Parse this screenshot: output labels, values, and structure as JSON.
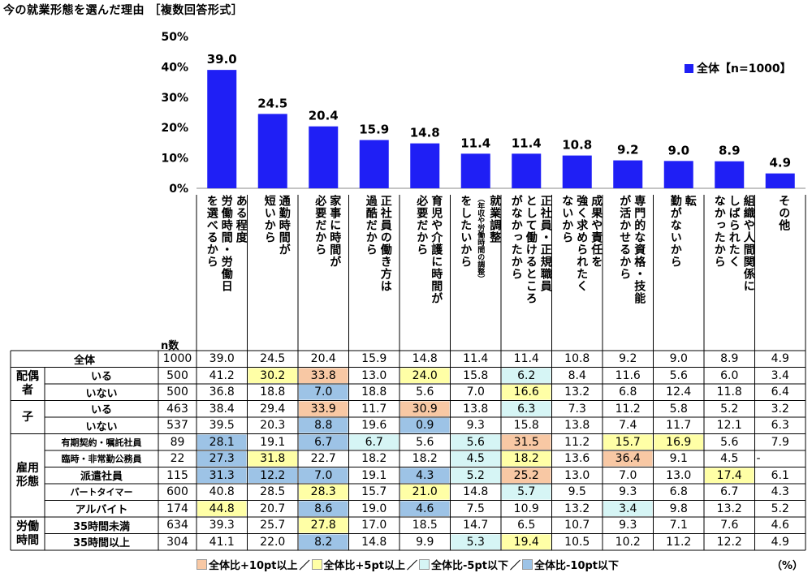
{
  "title": "今の就業形態を選んだ理由 ［複数回答形式］",
  "chart_data": {
    "type": "bar",
    "title": "今の就業形態を選んだ理由 ［複数回答形式］",
    "ylim": [
      0,
      50
    ],
    "yticks": [
      "0%",
      "10%",
      "20%",
      "30%",
      "40%",
      "50%"
    ],
    "series": [
      {
        "name": "全体【n=1000】",
        "color": "#1F1FF5",
        "values": [
          39.0,
          24.5,
          20.4,
          15.9,
          14.8,
          11.4,
          11.4,
          10.8,
          9.2,
          9.0,
          8.9,
          4.9
        ]
      }
    ],
    "value_labels": [
      "39.0",
      "24.5",
      "20.4",
      "15.9",
      "14.8",
      "11.4",
      "11.4",
      "10.8",
      "9.2",
      "9.0",
      "8.9",
      "4.9"
    ],
    "categories": [
      {
        "lines": [
          "ある程度",
          "労働時間・労働日",
          "を選べるから"
        ]
      },
      {
        "lines": [
          "通勤時間が",
          "短いから"
        ]
      },
      {
        "lines": [
          "家事に時間が",
          "必要だから"
        ]
      },
      {
        "lines": [
          "正社員の働き方は",
          "過酷だから"
        ]
      },
      {
        "lines": [
          "育児や介護に時間が",
          "必要だから"
        ]
      },
      {
        "lines": [
          "就業調整",
          "（年収や労働時間の調整）",
          "をしたいから"
        ]
      },
      {
        "lines": [
          "正社員・正規職員",
          "として働けるところ",
          "がなかったから"
        ]
      },
      {
        "lines": [
          "成果や責任を",
          "強く求められたく",
          "ないから"
        ]
      },
      {
        "lines": [
          "専門的な資格・技能",
          "が活かせるから"
        ]
      },
      {
        "lines": [
          "転",
          "勤がないから"
        ]
      },
      {
        "lines": [
          "組織や人間関係に",
          "しばられたく",
          "なかったから"
        ]
      },
      {
        "lines": [
          "その他"
        ]
      }
    ],
    "legend": "top-right"
  },
  "table": {
    "n_header": "n数",
    "rows": [
      {
        "group": "",
        "label": "全体",
        "n": "1000",
        "values": [
          "39.0",
          "24.5",
          "20.4",
          "15.9",
          "14.8",
          "11.4",
          "11.4",
          "10.8",
          "9.2",
          "9.0",
          "8.9",
          "4.9"
        ]
      },
      {
        "group": "配偶者",
        "label": "いる",
        "n": "500",
        "values": [
          "41.2",
          "30.2",
          "33.8",
          "13.0",
          "24.0",
          "15.8",
          "6.2",
          "8.4",
          "11.6",
          "5.6",
          "6.0",
          "3.4"
        ]
      },
      {
        "group": "配偶者",
        "label": "いない",
        "n": "500",
        "values": [
          "36.8",
          "18.8",
          "7.0",
          "18.8",
          "5.6",
          "7.0",
          "16.6",
          "13.2",
          "6.8",
          "12.4",
          "11.8",
          "6.4"
        ]
      },
      {
        "group": "子",
        "label": "いる",
        "n": "463",
        "values": [
          "38.4",
          "29.4",
          "33.9",
          "11.7",
          "30.9",
          "13.8",
          "6.3",
          "7.3",
          "11.2",
          "5.8",
          "5.2",
          "3.2"
        ]
      },
      {
        "group": "子",
        "label": "いない",
        "n": "537",
        "values": [
          "39.5",
          "20.3",
          "8.8",
          "19.6",
          "0.9",
          "9.3",
          "15.8",
          "13.8",
          "7.4",
          "11.7",
          "12.1",
          "6.3"
        ]
      },
      {
        "group": "雇用形態",
        "label": "有期契約・嘱託社員",
        "n": "89",
        "values": [
          "28.1",
          "19.1",
          "6.7",
          "6.7",
          "5.6",
          "5.6",
          "31.5",
          "11.2",
          "15.7",
          "16.9",
          "5.6",
          "7.9"
        ]
      },
      {
        "group": "雇用形態",
        "label": "臨時・非常勤公務員",
        "n": "22",
        "values": [
          "27.3",
          "31.8",
          "22.7",
          "18.2",
          "18.2",
          "4.5",
          "18.2",
          "13.6",
          "36.4",
          "9.1",
          "4.5",
          "-"
        ]
      },
      {
        "group": "雇用形態",
        "label": "派遣社員",
        "n": "115",
        "values": [
          "31.3",
          "12.2",
          "7.0",
          "19.1",
          "4.3",
          "5.2",
          "25.2",
          "13.0",
          "7.0",
          "13.0",
          "17.4",
          "6.1"
        ]
      },
      {
        "group": "雇用形態",
        "label": "パートタイマー",
        "n": "600",
        "values": [
          "40.8",
          "28.5",
          "28.3",
          "15.7",
          "21.0",
          "14.8",
          "5.7",
          "9.5",
          "9.3",
          "6.8",
          "6.7",
          "4.3"
        ]
      },
      {
        "group": "雇用形態",
        "label": "アルバイト",
        "n": "174",
        "values": [
          "44.8",
          "20.7",
          "8.6",
          "19.0",
          "4.6",
          "7.5",
          "10.9",
          "13.2",
          "3.4",
          "9.8",
          "13.2",
          "5.2"
        ]
      },
      {
        "group": "労働時間",
        "label": "35時間未満",
        "n": "634",
        "values": [
          "39.3",
          "25.7",
          "27.8",
          "17.0",
          "18.5",
          "14.7",
          "6.5",
          "10.7",
          "9.3",
          "7.1",
          "7.6",
          "4.6"
        ]
      },
      {
        "group": "労働時間",
        "label": "35時間以上",
        "n": "304",
        "values": [
          "41.1",
          "22.0",
          "8.2",
          "14.8",
          "9.9",
          "5.3",
          "19.4",
          "10.5",
          "10.2",
          "11.2",
          "12.2",
          "4.9"
        ]
      }
    ],
    "highlights": [
      [
        null,
        null,
        null,
        null,
        null,
        null,
        null,
        null,
        null,
        null,
        null,
        null
      ],
      [
        null,
        "y",
        "o",
        null,
        "y",
        null,
        "c",
        null,
        null,
        null,
        null,
        null
      ],
      [
        null,
        null,
        "b",
        null,
        null,
        null,
        "y",
        null,
        null,
        null,
        null,
        null
      ],
      [
        null,
        null,
        "o",
        null,
        "o",
        null,
        "c",
        null,
        null,
        null,
        null,
        null
      ],
      [
        null,
        null,
        "b",
        null,
        "b",
        null,
        null,
        null,
        null,
        null,
        null,
        null
      ],
      [
        "b",
        null,
        "b",
        "c",
        null,
        "c",
        "o",
        null,
        "y",
        "y",
        null,
        null
      ],
      [
        "b",
        "y",
        null,
        null,
        null,
        "c",
        "y",
        null,
        "o",
        null,
        null,
        null
      ],
      [
        "b",
        "b",
        "b",
        null,
        "b",
        "c",
        "o",
        null,
        null,
        null,
        "y",
        null
      ],
      [
        null,
        null,
        "y",
        null,
        "y",
        null,
        "c",
        null,
        null,
        null,
        null,
        null
      ],
      [
        "y",
        null,
        "b",
        null,
        "b",
        null,
        null,
        null,
        "c",
        null,
        null,
        null
      ],
      [
        null,
        null,
        "y",
        null,
        null,
        null,
        null,
        null,
        null,
        null,
        null,
        null
      ],
      [
        null,
        null,
        "b",
        null,
        null,
        "c",
        "y",
        null,
        null,
        null,
        null,
        null
      ]
    ],
    "highlight_colors": {
      "o": "#F8C8A4",
      "y": "#FFFFA6",
      "c": "#D6F5F5",
      "b": "#9DC3E6"
    }
  },
  "groups": [
    {
      "label": "配偶者",
      "display": [
        "配偶",
        "者"
      ]
    },
    {
      "label": "子",
      "display": [
        "子"
      ]
    },
    {
      "label": "雇用形態",
      "display": [
        "雇用",
        "形態"
      ]
    },
    {
      "label": "労働時間",
      "display": [
        "労働",
        "時間"
      ]
    }
  ],
  "legend_bottom": [
    {
      "text": "全体比+10pt以上",
      "color": "#F8C8A4"
    },
    {
      "text": "全体比+5pt以上",
      "color": "#FFFFA6"
    },
    {
      "text": "全体比-5pt以下",
      "color": "#D6F5F5"
    },
    {
      "text": "全体比-10pt以下",
      "color": "#9DC3E6"
    }
  ],
  "unit": "（%）"
}
